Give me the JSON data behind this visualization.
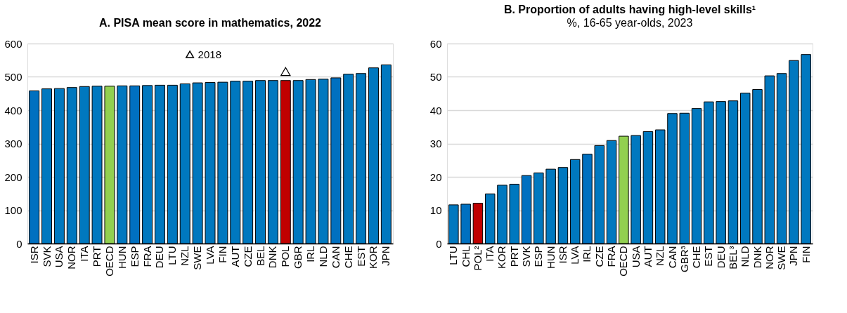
{
  "chart_data": [
    {
      "type": "bar",
      "title": "A. PISA mean score in mathematics, 2022",
      "categories": [
        "ISR",
        "SVK",
        "USA",
        "NOR",
        "ITA",
        "PRT",
        "OECD",
        "HUN",
        "ESP",
        "FRA",
        "DEU",
        "LTU",
        "NZL",
        "SWE",
        "LVA",
        "FIN",
        "AUT",
        "CZE",
        "BEL",
        "DNK",
        "POL",
        "GBR",
        "IRL",
        "NLD",
        "CAN",
        "CHE",
        "EST",
        "KOR",
        "JPN"
      ],
      "series": [
        {
          "values": [
            458,
            464,
            465,
            468,
            471,
            472,
            472,
            473,
            473,
            474,
            475,
            475,
            479,
            482,
            483,
            484,
            487,
            487,
            489,
            489,
            489,
            489,
            492,
            493,
            497,
            508,
            510,
            527,
            536
          ],
          "colors": [
            "#0070c0",
            "#0078bf",
            "#0078bf",
            "#0078bf",
            "#0078bf",
            "#0078bf",
            "#92d050",
            "#0078bf",
            "#0070c0",
            "#0078bf",
            "#0078bf",
            "#0078bf",
            "#0078bf",
            "#0078bf",
            "#0078bf",
            "#0078bf",
            "#0078bf",
            "#0078bf",
            "#0078bf",
            "#0078bf",
            "#c00000",
            "#0078bf",
            "#0078bf",
            "#0078bf",
            "#0070c0",
            "#0078bf",
            "#0078bf",
            "#0078bf",
            "#0078bf"
          ]
        },
        {
          "type": "scatter",
          "name": "2018",
          "color": "#000000",
          "marker": "triangle",
          "values": [
            null,
            null,
            null,
            null,
            null,
            null,
            null,
            null,
            null,
            null,
            null,
            null,
            null,
            null,
            null,
            null,
            null,
            null,
            null,
            null,
            516,
            null,
            null,
            null,
            null,
            null,
            null,
            null,
            null
          ]
        }
      ],
      "ylim": [
        0,
        600
      ],
      "yticks": [
        0,
        100,
        200,
        300,
        400,
        500,
        600
      ],
      "grid": "y",
      "legend": "top"
    },
    {
      "type": "bar",
      "title": "B. Proportion of adults having high-level skills¹",
      "subtitle": "%, 16-65 year-olds, 2023",
      "categories": [
        "LTU",
        "CHL",
        "POL²",
        "ITA",
        "KOR",
        "PRT",
        "SVK",
        "ESP",
        "HUN",
        "ISR",
        "LVA",
        "IRL",
        "CZE",
        "FRA",
        "OECD",
        "USA",
        "AUT",
        "NZL",
        "CAN",
        "GBR³",
        "CHE",
        "EST",
        "DEU",
        "BEL³",
        "NLD",
        "DNK",
        "NOR",
        "SWE",
        "JPN",
        "FIN"
      ],
      "series": [
        {
          "values": [
            11.6,
            11.8,
            12.1,
            14.9,
            17.5,
            17.8,
            20.4,
            21.2,
            22.3,
            22.8,
            25.2,
            26.8,
            29.4,
            30.9,
            32.2,
            32.4,
            33.6,
            34.1,
            39.0,
            39.1,
            40.5,
            42.5,
            42.6,
            42.8,
            45.1,
            46.2,
            50.3,
            51.0,
            54.9,
            56.7
          ],
          "colors": [
            "#0078bf",
            "#0070c0",
            "#c00000",
            "#0078bf",
            "#0078bf",
            "#0078bf",
            "#0070c0",
            "#0078bf",
            "#0078bf",
            "#0078bf",
            "#0078bf",
            "#0070c0",
            "#0078bf",
            "#0078bf",
            "#92d050",
            "#0078bf",
            "#0078bf",
            "#0078bf",
            "#0078bf",
            "#0078bf",
            "#0078bf",
            "#0078bf",
            "#0078bf",
            "#0078bf",
            "#0078bf",
            "#0078bf",
            "#0078bf",
            "#0078bf",
            "#0078bf",
            "#0078bf"
          ]
        }
      ],
      "ylim": [
        0,
        60
      ],
      "yticks": [
        0,
        10,
        20,
        30,
        40,
        50,
        60
      ],
      "grid": "y"
    }
  ]
}
